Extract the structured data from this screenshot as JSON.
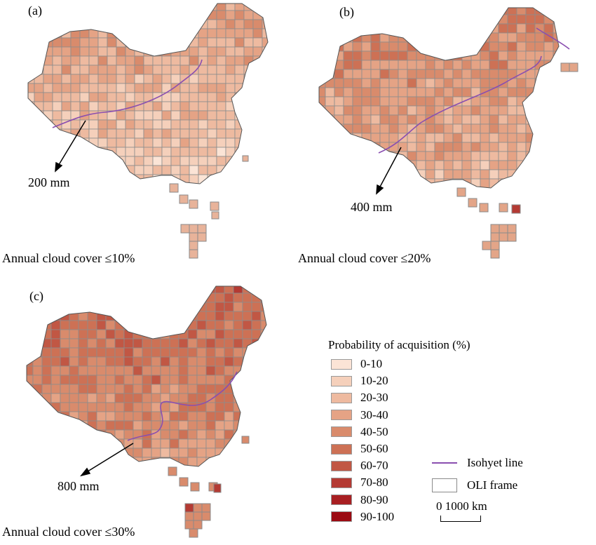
{
  "panels": [
    {
      "id": "a",
      "label": "(a)",
      "isohyet_label": "200 mm",
      "caption": "Annual cloud cover ≤10%"
    },
    {
      "id": "b",
      "label": "(b)",
      "isohyet_label": "400 mm",
      "caption": "Annual cloud cover ≤20%"
    },
    {
      "id": "c",
      "label": "(c)",
      "isohyet_label": "800 mm",
      "caption": "Annual cloud cover ≤30%"
    }
  ],
  "legend": {
    "title": "Probability of acquisition (%)",
    "classes": [
      {
        "label": "0-10",
        "color": "#fbe4d6"
      },
      {
        "label": "10-20",
        "color": "#f5d0bb"
      },
      {
        "label": "20-30",
        "color": "#eebaa0"
      },
      {
        "label": "30-40",
        "color": "#e5a385"
      },
      {
        "label": "40-50",
        "color": "#d98b6c"
      },
      {
        "label": "50-60",
        "color": "#cd7155"
      },
      {
        "label": "60-70",
        "color": "#c15744"
      },
      {
        "label": "70-80",
        "color": "#b43a33"
      },
      {
        "label": "80-90",
        "color": "#a81f22"
      },
      {
        "label": "90-100",
        "color": "#9b0a12"
      }
    ],
    "isohyet_label": "Isohyet line",
    "isohyet_color": "#8a4fb0",
    "frame_label": "OLI frame",
    "scale_label": "0  1000 km"
  }
}
